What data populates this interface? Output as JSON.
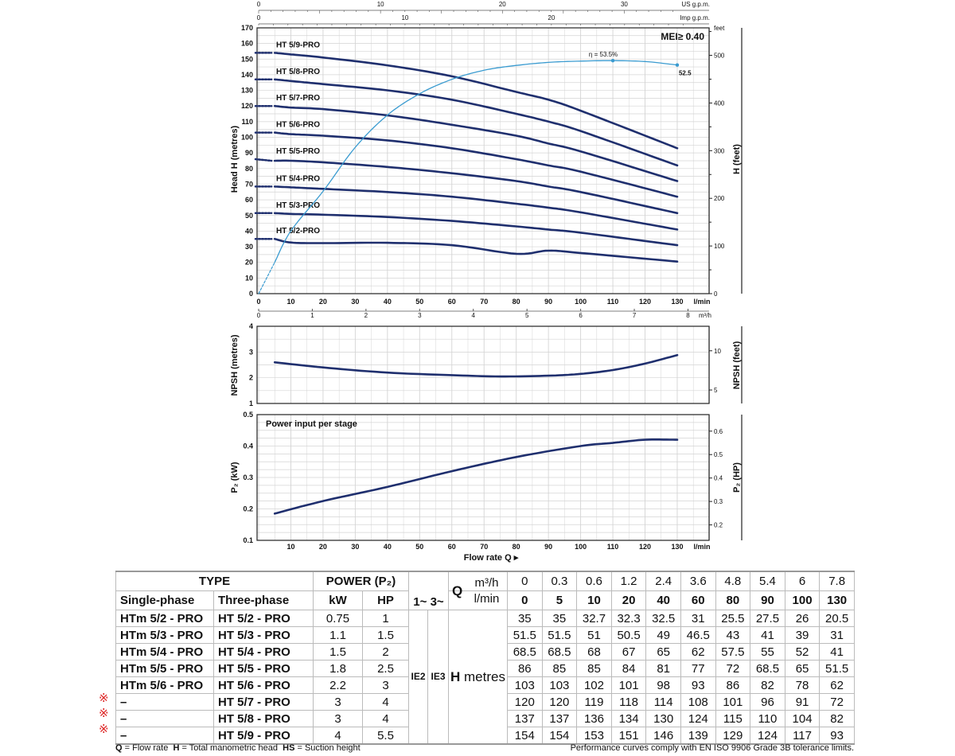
{
  "chart_data": [
    {
      "type": "line",
      "title": "",
      "ylabel": "Head H (metres)",
      "ylabel_right": "H (feet)",
      "xlabel": "l/min",
      "ylim": [
        0,
        170
      ],
      "xlim": [
        0,
        140
      ],
      "top_axes": [
        {
          "label": "US g.p.m.",
          "ticks": [
            0,
            10,
            20,
            30
          ]
        },
        {
          "label": "Imp g.p.m.",
          "ticks": [
            0,
            10,
            20
          ]
        }
      ],
      "secondary_x": {
        "label": "m³/h",
        "ticks": [
          0,
          1,
          2,
          3,
          4,
          5,
          6,
          7,
          8
        ]
      },
      "x_ticks": [
        0,
        10,
        20,
        30,
        40,
        50,
        60,
        70,
        80,
        90,
        100,
        110,
        120,
        130
      ],
      "y_ticks": [
        0,
        10,
        20,
        30,
        40,
        50,
        60,
        70,
        80,
        90,
        100,
        110,
        120,
        130,
        140,
        150,
        160,
        170
      ],
      "y_right_ticks": [
        0,
        100,
        200,
        300,
        400,
        500
      ],
      "y_right_unit": "feet",
      "annotation_mei": "MEI≥ 0.40",
      "x": [
        0,
        5,
        10,
        20,
        40,
        60,
        80,
        90,
        100,
        130
      ],
      "series": [
        {
          "name": "HT 5/2-PRO",
          "values": [
            35,
            35,
            32.7,
            32.3,
            32.5,
            31,
            25.5,
            27.5,
            26,
            20.5
          ]
        },
        {
          "name": "HT 5/3-PRO",
          "values": [
            51.5,
            51.5,
            51,
            50.5,
            49,
            46.5,
            43,
            41,
            39,
            31
          ]
        },
        {
          "name": "HT 5/4-PRO",
          "values": [
            68.5,
            68.5,
            68,
            67,
            65,
            62,
            57.5,
            55,
            52,
            41
          ]
        },
        {
          "name": "HT 5/5-PRO",
          "values": [
            86,
            85,
            85,
            84,
            81,
            77,
            72,
            68.5,
            65,
            51.5
          ]
        },
        {
          "name": "HT 5/6-PRO",
          "values": [
            103,
            103,
            102,
            101,
            98,
            93,
            86,
            82,
            78,
            62
          ]
        },
        {
          "name": "HT 5/7-PRO",
          "values": [
            120,
            120,
            119,
            118,
            114,
            108,
            101,
            96,
            91,
            72
          ]
        },
        {
          "name": "HT 5/8-PRO",
          "values": [
            137,
            137,
            136,
            134,
            130,
            124,
            115,
            110,
            104,
            82
          ]
        },
        {
          "name": "HT 5/9-PRO",
          "values": [
            154,
            154,
            153,
            151,
            146,
            139,
            129,
            124,
            117,
            93
          ]
        }
      ],
      "efficiency": {
        "x": [
          0,
          5,
          10,
          20,
          30,
          40,
          50,
          60,
          70,
          80,
          90,
          100,
          110,
          120,
          130
        ],
        "values": [
          0,
          7.2,
          14.4,
          23.5,
          33.6,
          41,
          45.9,
          49.2,
          51.3,
          52.4,
          53.1,
          53.4,
          53.5,
          53.3,
          52.5
        ],
        "peak_label": "η = 53.5%",
        "end_label": "52.5"
      }
    },
    {
      "type": "line",
      "ylabel": "NPSH (metres)",
      "ylabel_right": "NPSH (feet)",
      "ylim": [
        1,
        4
      ],
      "y_ticks": [
        1,
        2,
        3,
        4
      ],
      "y_right_ticks": [
        5,
        10
      ],
      "x": [
        5,
        20,
        40,
        60,
        75,
        90,
        100,
        110,
        120,
        130
      ],
      "values": [
        2.6,
        2.4,
        2.2,
        2.1,
        2.05,
        2.08,
        2.15,
        2.3,
        2.55,
        2.88
      ]
    },
    {
      "type": "line",
      "title": "Power input per stage",
      "ylabel": "P₂ (kW)",
      "ylabel_right": "P₂ (HP)",
      "xlabel": "Flow rate Q ▸",
      "x_unit": "l/min",
      "ylim": [
        0.1,
        0.5
      ],
      "y_ticks": [
        0.1,
        0.2,
        0.3,
        0.4,
        0.5
      ],
      "y_right_ticks": [
        0.2,
        0.3,
        0.4,
        0.5,
        0.6
      ],
      "x": [
        5,
        20,
        40,
        60,
        80,
        100,
        110,
        120,
        130
      ],
      "values": [
        0.185,
        0.225,
        0.27,
        0.32,
        0.365,
        0.4,
        0.41,
        0.42,
        0.42
      ]
    }
  ],
  "table": {
    "h_type": "TYPE",
    "h_power": "POWER (P₂)",
    "h_single": "Single-phase",
    "h_three": "Three-phase",
    "h_kw": "kW",
    "h_hp": "HP",
    "h_1": "1~",
    "h_3": "3~",
    "h_q": "Q",
    "h_m3h": "m³/h",
    "h_lmin": "l/min",
    "ie2": "IE2",
    "ie3": "IE3",
    "h_metres_b": "H",
    "h_metres": " metres",
    "m3h": [
      "0",
      "0.3",
      "0.6",
      "1.2",
      "2.4",
      "3.6",
      "4.8",
      "5.4",
      "6",
      "7.8"
    ],
    "lmin": [
      "0",
      "5",
      "10",
      "20",
      "40",
      "60",
      "80",
      "90",
      "100",
      "130"
    ],
    "rows": [
      {
        "single": "HTm 5/2 - PRO",
        "three": "HT 5/2 - PRO",
        "kw": "0.75",
        "hp": "1",
        "h": [
          "35",
          "35",
          "32.7",
          "32.3",
          "32.5",
          "31",
          "25.5",
          "27.5",
          "26",
          "20.5"
        ]
      },
      {
        "single": "HTm 5/3 - PRO",
        "three": "HT 5/3 - PRO",
        "kw": "1.1",
        "hp": "1.5",
        "h": [
          "51.5",
          "51.5",
          "51",
          "50.5",
          "49",
          "46.5",
          "43",
          "41",
          "39",
          "31"
        ]
      },
      {
        "single": "HTm 5/4 - PRO",
        "three": "HT 5/4 - PRO",
        "kw": "1.5",
        "hp": "2",
        "h": [
          "68.5",
          "68.5",
          "68",
          "67",
          "65",
          "62",
          "57.5",
          "55",
          "52",
          "41"
        ]
      },
      {
        "single": "HTm 5/5 - PRO",
        "three": "HT 5/5 - PRO",
        "kw": "1.8",
        "hp": "2.5",
        "h": [
          "86",
          "85",
          "85",
          "84",
          "81",
          "77",
          "72",
          "68.5",
          "65",
          "51.5"
        ]
      },
      {
        "single": "HTm 5/6 - PRO",
        "three": "HT 5/6 - PRO",
        "kw": "2.2",
        "hp": "3",
        "h": [
          "103",
          "103",
          "102",
          "101",
          "98",
          "93",
          "86",
          "82",
          "78",
          "62"
        ]
      },
      {
        "single": "–",
        "three": "HT 5/7 - PRO",
        "kw": "3",
        "hp": "4",
        "h": [
          "120",
          "120",
          "119",
          "118",
          "114",
          "108",
          "101",
          "96",
          "91",
          "72"
        ],
        "mark": "※"
      },
      {
        "single": "–",
        "three": "HT 5/8 - PRO",
        "kw": "3",
        "hp": "4",
        "h": [
          "137",
          "137",
          "136",
          "134",
          "130",
          "124",
          "115",
          "110",
          "104",
          "82"
        ],
        "mark": "※"
      },
      {
        "single": "–",
        "three": "HT 5/9 - PRO",
        "kw": "4",
        "hp": "5.5",
        "h": [
          "154",
          "154",
          "153",
          "151",
          "146",
          "139",
          "129",
          "124",
          "117",
          "93"
        ],
        "mark": "※"
      }
    ]
  },
  "footer": {
    "q_b": "Q",
    "q": " = Flow rate  ",
    "h_b": "H",
    "h": " = Total manometric head  ",
    "hs_b": "HS",
    "hs": " = Suction height",
    "right": "Performance curves comply with EN ISO 9906 Grade 3B tolerance limits."
  },
  "colors": {
    "curve": "#1f2f6e",
    "efficiency": "#3a9bd0",
    "grid": "#d4d4d4",
    "mark": "#d22222"
  }
}
